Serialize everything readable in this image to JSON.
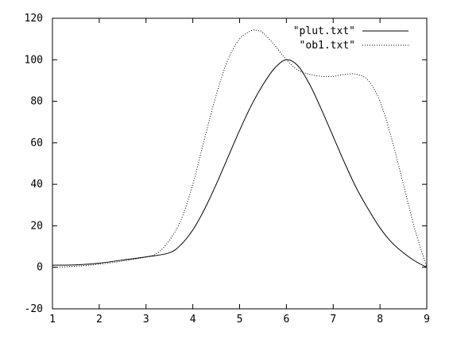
{
  "chart_data": {
    "type": "line",
    "xlim": [
      1,
      9
    ],
    "ylim": [
      -20,
      120
    ],
    "x_ticks": [
      1,
      2,
      3,
      4,
      5,
      6,
      7,
      8,
      9
    ],
    "y_ticks": [
      -20,
      0,
      20,
      40,
      60,
      80,
      100,
      120
    ],
    "x_tick_labels": [
      "1",
      "2",
      "3",
      "4",
      "5",
      "6",
      "7",
      "8",
      "9"
    ],
    "y_tick_labels": [
      "-20",
      "0",
      "20",
      "40",
      "60",
      "80",
      "100",
      "120"
    ],
    "grid": false,
    "legend_position": "top-right",
    "series": [
      {
        "name": "\"plut.txt\"",
        "style": "solid",
        "color": "#000000",
        "x": [
          1,
          1.5,
          2,
          2.5,
          3,
          3.5,
          3.75,
          4,
          4.25,
          4.5,
          4.75,
          5,
          5.25,
          5.5,
          5.75,
          6,
          6.25,
          6.5,
          6.75,
          7,
          7.25,
          7.5,
          7.75,
          8,
          8.25,
          8.5,
          8.75,
          9
        ],
        "y": [
          1,
          1.2,
          2,
          3.5,
          5,
          7,
          11,
          18,
          28,
          40,
          53,
          66,
          78,
          88,
          96,
          100,
          97,
          88,
          76,
          63,
          50,
          38,
          28,
          19,
          12,
          7,
          3,
          0
        ]
      },
      {
        "name": "\"ob1.txt\"",
        "style": "dotted",
        "color": "#000000",
        "x": [
          1,
          1.5,
          2,
          2.5,
          3,
          3.25,
          3.5,
          3.75,
          4,
          4.25,
          4.5,
          4.75,
          5,
          5.25,
          5.4,
          5.5,
          5.75,
          6,
          6.25,
          6.5,
          6.75,
          7,
          7.25,
          7.5,
          7.75,
          8,
          8.25,
          8.5,
          8.75,
          9
        ],
        "y": [
          0,
          0.5,
          1.5,
          3,
          5,
          7,
          13,
          23,
          40,
          62,
          83,
          100,
          110,
          114,
          114,
          113,
          107,
          100,
          95,
          93,
          92,
          92,
          93,
          93,
          90,
          80,
          62,
          40,
          18,
          0
        ]
      }
    ]
  }
}
